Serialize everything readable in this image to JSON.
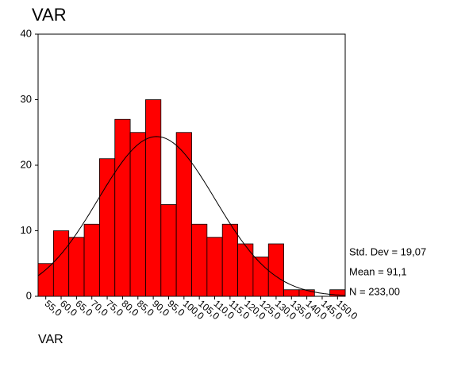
{
  "chart_data": {
    "type": "histogram",
    "title": "VAR",
    "x_label": "VAR",
    "bins": [
      52.5,
      57.5,
      62.5,
      67.5,
      72.5,
      77.5,
      82.5,
      87.5,
      92.5,
      97.5,
      102.5,
      107.5,
      112.5,
      117.5,
      122.5,
      127.5,
      132.5,
      137.5,
      142.5,
      147.5,
      152.5
    ],
    "values": [
      5,
      10,
      9,
      11,
      21,
      27,
      25,
      30,
      14,
      25,
      11,
      9,
      11,
      8,
      6,
      8,
      1,
      1,
      0,
      1
    ],
    "color": "#ff0000",
    "xlim": [
      52.5,
      152.5
    ],
    "xticks": [
      {
        "value": 55,
        "label": "55,0"
      },
      {
        "value": 60,
        "label": "60,0"
      },
      {
        "value": 65,
        "label": "65,0"
      },
      {
        "value": 70,
        "label": "70,0"
      },
      {
        "value": 75,
        "label": "75,0"
      },
      {
        "value": 80,
        "label": "80,0"
      },
      {
        "value": 85,
        "label": "85,0"
      },
      {
        "value": 90,
        "label": "90,0"
      },
      {
        "value": 95,
        "label": "95,0"
      },
      {
        "value": 100,
        "label": "100,0"
      },
      {
        "value": 105,
        "label": "105,0"
      },
      {
        "value": 110,
        "label": "110,0"
      },
      {
        "value": 115,
        "label": "115,0"
      },
      {
        "value": 120,
        "label": "120,0"
      },
      {
        "value": 125,
        "label": "125,0"
      },
      {
        "value": 130,
        "label": "130,0"
      },
      {
        "value": 135,
        "label": "135,0"
      },
      {
        "value": 140,
        "label": "140,0"
      },
      {
        "value": 145,
        "label": "145,0"
      },
      {
        "value": 150,
        "label": "150,0"
      }
    ],
    "ylim": [
      0,
      40
    ],
    "yticks": [
      0,
      10,
      20,
      30,
      40
    ],
    "normal_curve": {
      "mean": 91.1,
      "std_dev": 19.07,
      "n": 233
    },
    "stats": [
      "Std. Dev = 19,07",
      "Mean = 91,1",
      "N = 233,00"
    ]
  }
}
